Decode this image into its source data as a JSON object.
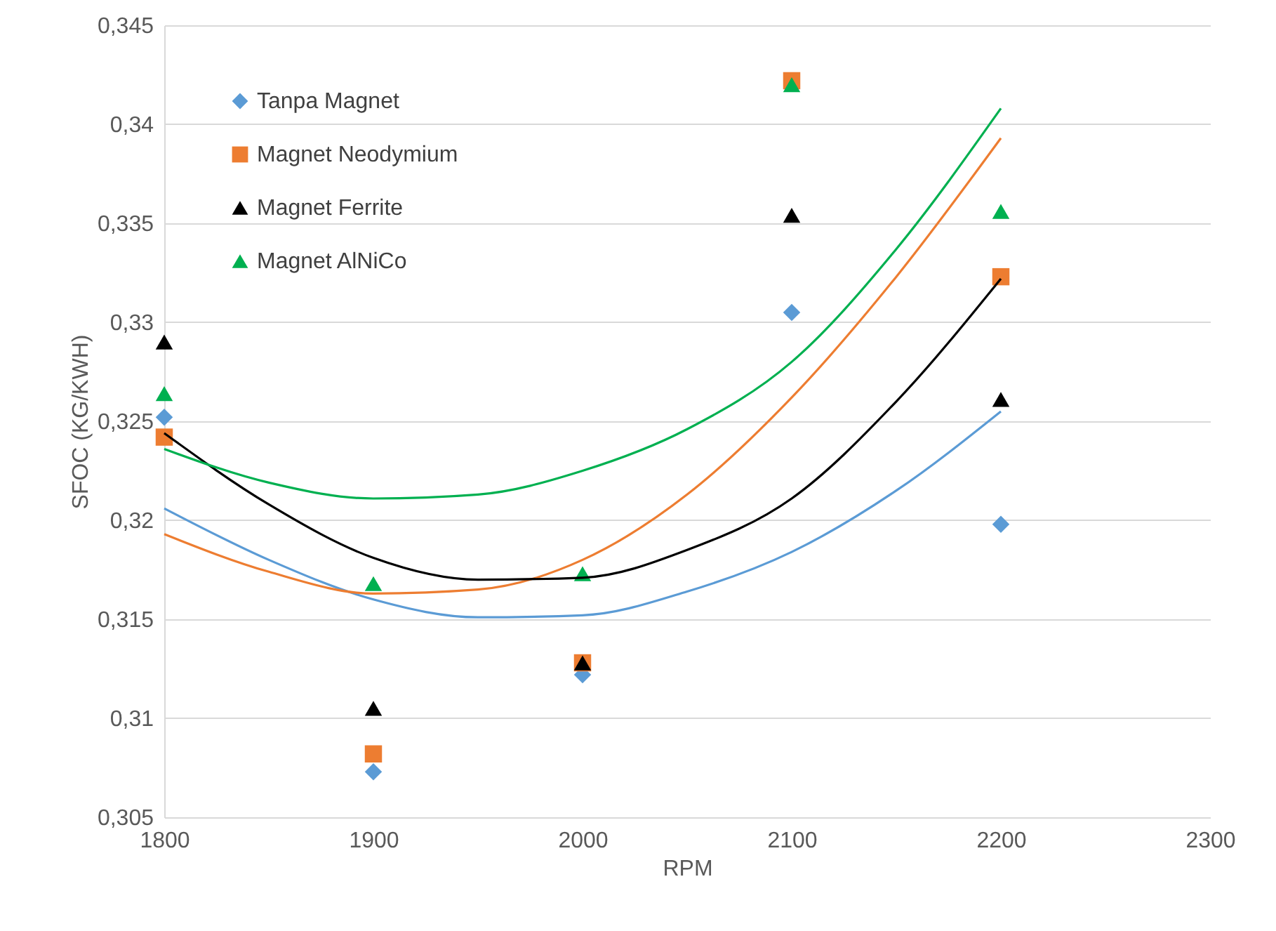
{
  "chart_data": {
    "type": "scatter",
    "xlabel": "RPM",
    "ylabel": "SFOC (KG/KWH)",
    "x": [
      1800,
      1900,
      2000,
      2100,
      2200
    ],
    "xlim": [
      1800,
      2300
    ],
    "xticks": [
      1800,
      1900,
      2000,
      2100,
      2200,
      2300
    ],
    "ylim": [
      0.305,
      0.345
    ],
    "yticks": [
      {
        "value": 0.305,
        "label": "0,305"
      },
      {
        "value": 0.31,
        "label": "0,31"
      },
      {
        "value": 0.315,
        "label": "0,315"
      },
      {
        "value": 0.32,
        "label": "0,32"
      },
      {
        "value": 0.325,
        "label": "0,325"
      },
      {
        "value": 0.33,
        "label": "0,33"
      },
      {
        "value": 0.335,
        "label": "0,335"
      },
      {
        "value": 0.34,
        "label": "0,34"
      },
      {
        "value": 0.345,
        "label": "0,345"
      }
    ],
    "grid": "y",
    "legend": "top left",
    "series": [
      {
        "name": "Tanpa Magnet",
        "color": "#5b9bd5",
        "marker": "diamond",
        "values": [
          0.3252,
          0.3073,
          0.3122,
          0.3305,
          0.3198
        ]
      },
      {
        "name": "Magnet Neodymium",
        "color": "#ed7d31",
        "marker": "square",
        "values": [
          0.3242,
          0.3082,
          0.3128,
          0.3422,
          0.3323
        ]
      },
      {
        "name": "Magnet Ferrite",
        "color": "#000000",
        "marker": "triangle",
        "values": [
          0.329,
          0.3105,
          0.3128,
          0.3354,
          0.3261
        ]
      },
      {
        "name": "Magnet AlNiCo",
        "color": "#00b050",
        "marker": "triangle",
        "values": [
          0.3264,
          0.3168,
          0.3173,
          0.342,
          0.3356
        ]
      },
      {
        "type": "line",
        "color": "#5b9bd5",
        "marker": "none",
        "x": [
          1800,
          1850,
          1900,
          1950,
          2000,
          2050,
          2100,
          2150,
          2200
        ],
        "values": [
          0.3206,
          0.318,
          0.316,
          0.3151,
          0.3152,
          0.3164,
          0.3184,
          0.3215,
          0.3255
        ]
      },
      {
        "type": "line",
        "color": "#ed7d31",
        "marker": "none",
        "x": [
          1800,
          1850,
          1900,
          1950,
          2000,
          2050,
          2100,
          2150,
          2200
        ],
        "values": [
          0.3193,
          0.3174,
          0.3163,
          0.3165,
          0.318,
          0.3213,
          0.3262,
          0.3323,
          0.3393
        ]
      },
      {
        "type": "line",
        "color": "#000000",
        "marker": "none",
        "x": [
          1800,
          1850,
          1900,
          1950,
          2000,
          2050,
          2100,
          2150,
          2200
        ],
        "values": [
          0.3244,
          0.3208,
          0.3181,
          0.317,
          0.3171,
          0.3185,
          0.3211,
          0.326,
          0.3322
        ]
      },
      {
        "type": "line",
        "color": "#00b050",
        "marker": "none",
        "x": [
          1800,
          1850,
          1900,
          1950,
          2000,
          2050,
          2100,
          2150,
          2200
        ],
        "values": [
          0.3236,
          0.3219,
          0.3211,
          0.3213,
          0.3225,
          0.3246,
          0.328,
          0.3337,
          0.3408
        ]
      }
    ]
  }
}
